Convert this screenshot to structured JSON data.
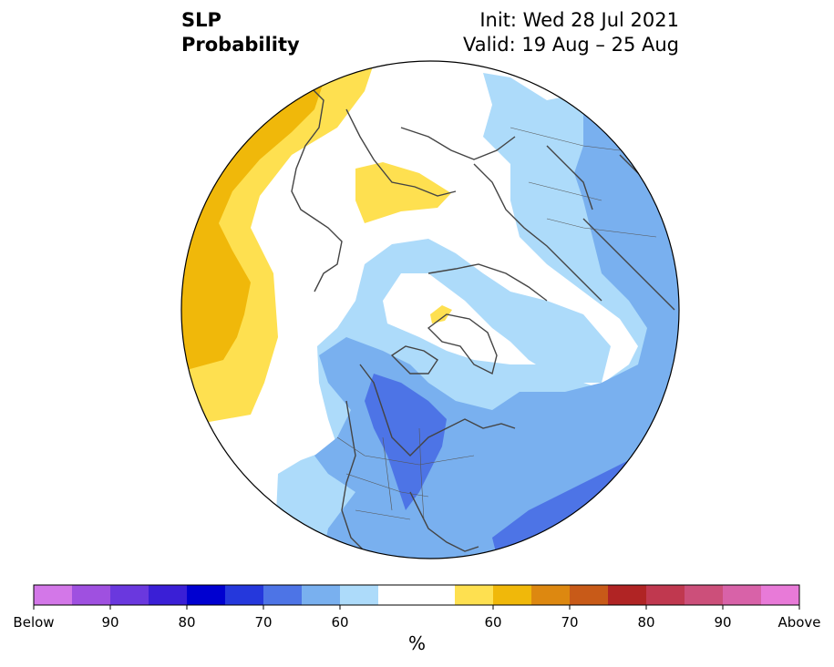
{
  "title": {
    "left_line1": "SLP",
    "left_line2": "Probability",
    "right_line1": "Init: Wed 28 Jul 2021",
    "right_line2": "Valid: 19 Aug – 25 Aug"
  },
  "colorbar": {
    "unit": "%",
    "below_colors": [
      "#d377e8",
      "#9f50e0",
      "#6a38de",
      "#3a1fd6",
      "#0000d0",
      "#2538dc",
      "#4d74e6",
      "#79b0ef",
      "#addbfa"
    ],
    "neutral_color": "#ffffff",
    "above_colors": [
      "#fee050",
      "#f0b80a",
      "#dd8810",
      "#c85a18",
      "#b02424",
      "#c0384f",
      "#cc4f7a",
      "#d862a8",
      "#e87ad8"
    ],
    "tick_labels": [
      "Below",
      "90",
      "80",
      "70",
      "60",
      "60",
      "70",
      "80",
      "90",
      "Above"
    ]
  },
  "map_colors": {
    "above_light": "#fee050",
    "above_mid": "#f0b80a",
    "below_light": "#addbfa",
    "below_mid": "#79b0ef",
    "below_strong": "#4d74e6",
    "land_outline": "#444444"
  }
}
